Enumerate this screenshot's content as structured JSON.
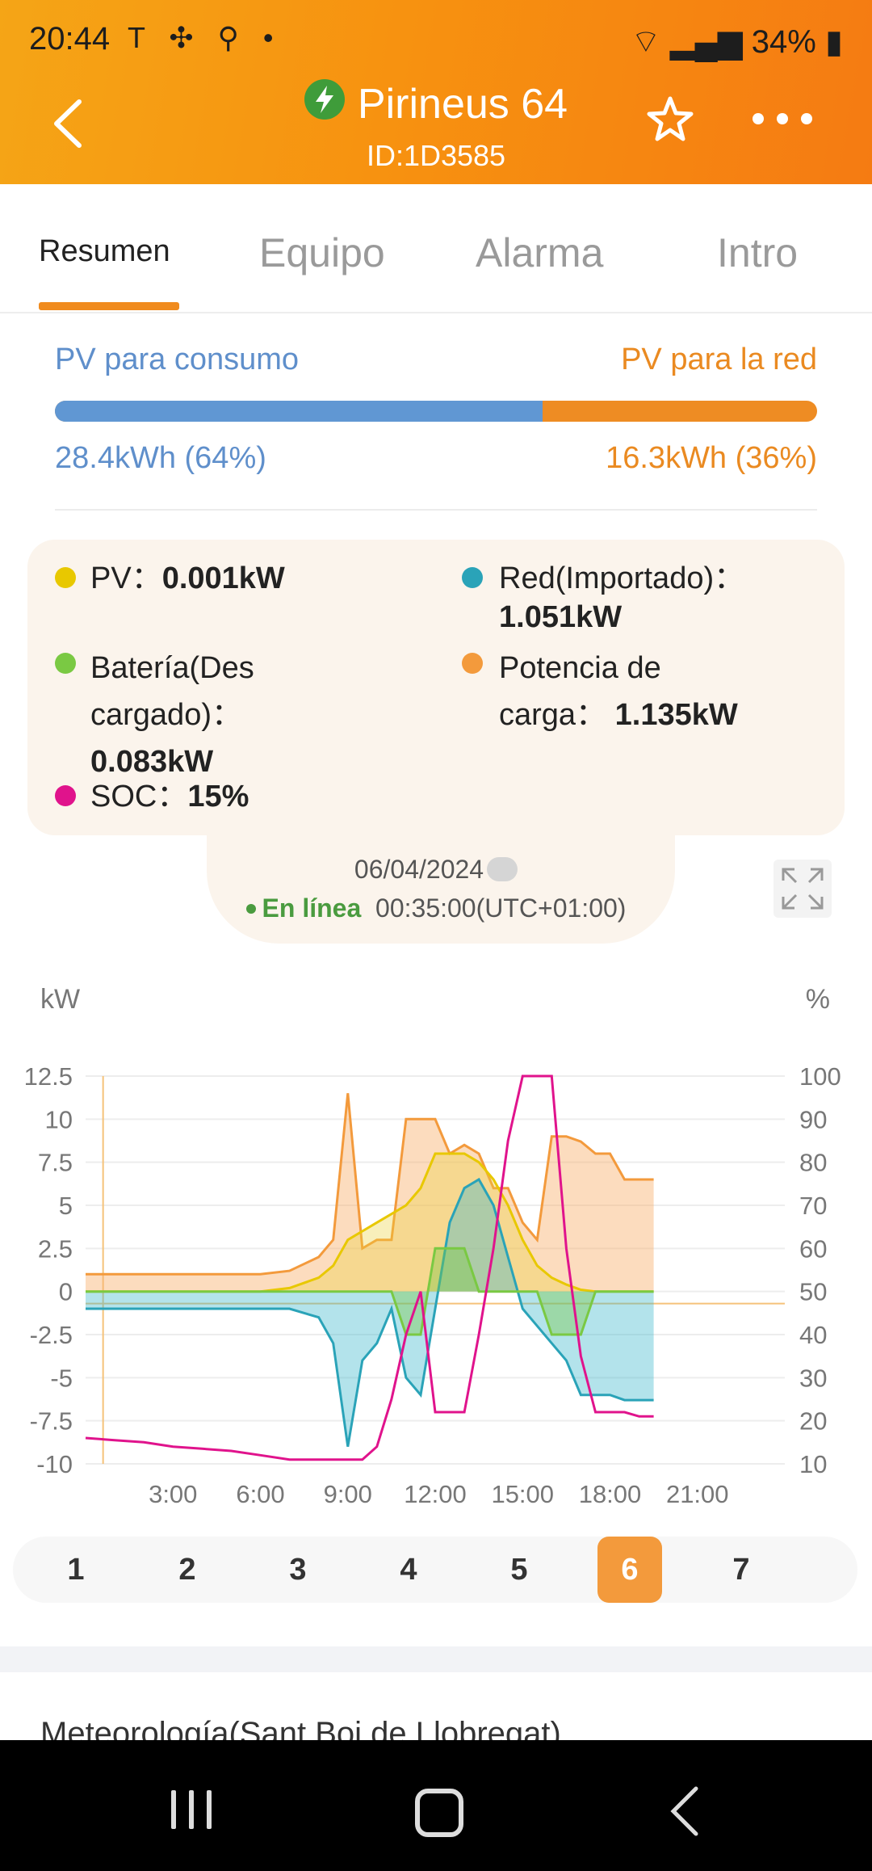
{
  "status_bar": {
    "time": "20:44",
    "left_icons": "T ✣ ⚲ •",
    "battery": "34%"
  },
  "header": {
    "title": "Pirineus 64",
    "subtitle": "ID:1D3585"
  },
  "tabs": [
    {
      "label": "Resumen"
    },
    {
      "label": "Equipo"
    },
    {
      "label": "Alarma"
    },
    {
      "label": "Intro"
    }
  ],
  "pv_split": {
    "consumo_label": "PV para consumo",
    "red_label": "PV para la red",
    "consumo_value": "28.4kWh (64%)",
    "red_value": "16.3kWh (36%)",
    "consumo_fraction": 0.64
  },
  "legend": {
    "pv_label": "PV：",
    "pv_value": "0.001kW",
    "red_label": "Red(Importado)：",
    "red_value": "1.051kW",
    "bat_label1": "Batería(Des",
    "bat_label2": "cargado)：",
    "bat_value": "0.083kW",
    "carga_label1": "Potencia de",
    "carga_label2": "carga：",
    "carga_value": "1.135kW",
    "soc_label": "SOC：",
    "soc_value": "15%"
  },
  "info": {
    "date": "06/04/2024",
    "online_label": "En línea",
    "time": "00:35:00(UTC+01:00)"
  },
  "colors": {
    "pv": "#e8c800",
    "red": "#2aa3b8",
    "bateria": "#7ac943",
    "carga": "#f39a3c",
    "soc": "#e0138c"
  },
  "chart_data": {
    "type": "area",
    "y_left_label": "kW",
    "y_right_label": "%",
    "y_left_ticks": [
      "12.5",
      "10",
      "7.5",
      "5",
      "2.5",
      "0",
      "-2.5",
      "-5",
      "-7.5",
      "-10"
    ],
    "y_right_ticks": [
      "100",
      "90",
      "80",
      "70",
      "60",
      "50",
      "40",
      "30",
      "20",
      "10"
    ],
    "x_ticks": [
      "3:00",
      "6:00",
      "9:00",
      "12:00",
      "15:00",
      "18:00",
      "21:00"
    ],
    "ylim_left": [
      -10,
      12.5
    ],
    "ylim_right": [
      10,
      100
    ],
    "x": [
      0,
      1,
      2,
      3,
      4,
      5,
      6,
      7,
      8,
      8.5,
      9,
      9.5,
      10,
      10.5,
      11,
      11.5,
      12,
      12.5,
      13,
      13.5,
      14,
      14.5,
      15,
      15.5,
      16,
      16.5,
      17,
      17.5,
      18,
      18.5,
      19,
      19.5
    ],
    "series": [
      {
        "key": "carga",
        "values": [
          1,
          1,
          1,
          1,
          1,
          1,
          1,
          1.2,
          2,
          3,
          11.5,
          2.5,
          3,
          3,
          10,
          10,
          10,
          8,
          8.5,
          8,
          6,
          6,
          4,
          3,
          9,
          9,
          8.7,
          8,
          8,
          6.5,
          6.5,
          6.5
        ]
      },
      {
        "key": "pv",
        "values": [
          0,
          0,
          0,
          0,
          0,
          0,
          0,
          0.2,
          0.8,
          1.5,
          3,
          3.5,
          4,
          4.5,
          5,
          6,
          8,
          8,
          8,
          7.5,
          6.5,
          5,
          3,
          1.5,
          0.8,
          0.4,
          0.1,
          0,
          0,
          0,
          0,
          0
        ]
      },
      {
        "key": "red",
        "values": [
          -1,
          -1,
          -1,
          -1,
          -1,
          -1,
          -1,
          -1,
          -1.5,
          -3,
          -9,
          -4,
          -3,
          -1,
          -5,
          -6,
          -1,
          4,
          6,
          6.5,
          5,
          2,
          -1,
          -2,
          -3,
          -4,
          -6,
          -6,
          -6,
          -6.3,
          -6.3,
          -6.3
        ]
      },
      {
        "key": "bateria",
        "values": [
          0,
          0,
          0,
          0,
          0,
          0,
          0,
          0,
          0,
          0,
          0,
          0,
          0,
          0,
          -2.5,
          -2.5,
          2.5,
          2.5,
          2.5,
          0,
          0,
          0,
          0,
          0,
          -2.5,
          -2.5,
          -2.5,
          0,
          0,
          0,
          0,
          0
        ]
      },
      {
        "key": "soc",
        "values": [
          16,
          15.5,
          15,
          14,
          13.5,
          13,
          12,
          11,
          11,
          11,
          11,
          11,
          14,
          25,
          40,
          50,
          22,
          22,
          22,
          40,
          60,
          85,
          100,
          100,
          100,
          60,
          35,
          22,
          22,
          22,
          21,
          21
        ]
      }
    ]
  },
  "pages": [
    "1",
    "2",
    "3",
    "4",
    "5",
    "6",
    "7"
  ],
  "active_page": "6",
  "meteo_title": "Meteorología(Sant Boi de Llobregat)"
}
